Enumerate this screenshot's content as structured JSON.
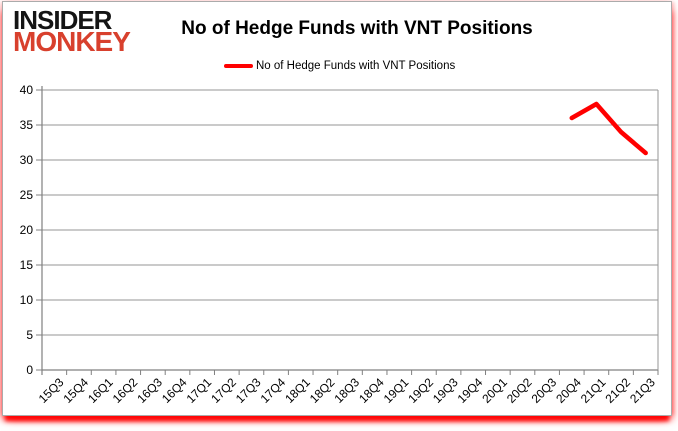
{
  "header": {
    "logo": {
      "line1": "INSIDER",
      "line2": "MONKEY",
      "line1_color": "#141414",
      "line2_color": "#d8402d"
    },
    "title": "No of Hedge Funds with VNT Positions"
  },
  "legend": {
    "label": "No of Hedge Funds with VNT Positions",
    "line_color": "#ff0000"
  },
  "chart_data": {
    "type": "line",
    "title": "No of Hedge Funds with VNT Positions",
    "xlabel": "",
    "ylabel": "",
    "categories": [
      "15Q3",
      "15Q4",
      "16Q1",
      "16Q2",
      "16Q3",
      "16Q4",
      "17Q1",
      "17Q2",
      "17Q3",
      "17Q4",
      "18Q1",
      "18Q2",
      "18Q3",
      "18Q4",
      "19Q1",
      "19Q2",
      "19Q3",
      "19Q4",
      "20Q1",
      "20Q2",
      "20Q3",
      "20Q4",
      "21Q1",
      "21Q2",
      "21Q3"
    ],
    "series": [
      {
        "name": "No of Hedge Funds with VNT Positions",
        "color": "#ff0000",
        "values": [
          null,
          null,
          null,
          null,
          null,
          null,
          null,
          null,
          null,
          null,
          null,
          null,
          null,
          null,
          null,
          null,
          null,
          null,
          null,
          null,
          null,
          36,
          38,
          34,
          31
        ]
      }
    ],
    "ylim": [
      0,
      40
    ],
    "ytick_step": 5,
    "grid": true,
    "legend_position": "top",
    "grid_color": "#969696",
    "axis_color": "#808080",
    "tick_label_color": "#000000"
  }
}
